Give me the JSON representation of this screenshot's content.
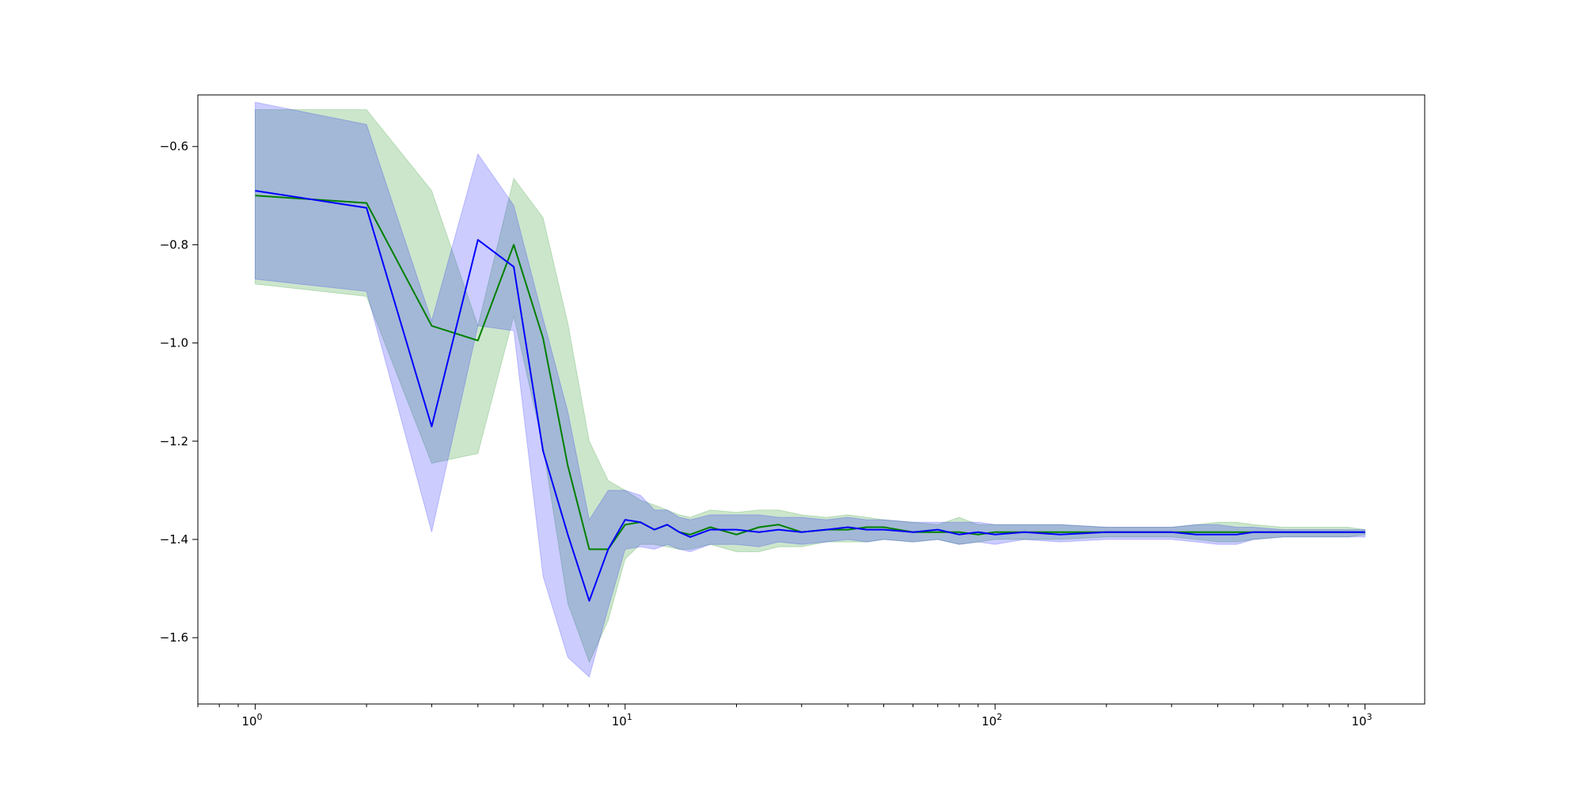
{
  "chart_data": {
    "type": "line",
    "title": "",
    "xlabel": "",
    "ylabel": "",
    "x_scale": "log",
    "xlim": [
      0.7,
      1450
    ],
    "ylim": [
      -1.735,
      -0.495
    ],
    "grid": false,
    "legend": "none",
    "x_ticks": [
      {
        "value": 1,
        "base": "10",
        "exp": "0"
      },
      {
        "value": 10,
        "base": "10",
        "exp": "1"
      },
      {
        "value": 100,
        "base": "10",
        "exp": "2"
      },
      {
        "value": 1000,
        "base": "10",
        "exp": "3"
      }
    ],
    "y_ticks": [
      {
        "value": -0.6,
        "label": "−0.6"
      },
      {
        "value": -0.8,
        "label": "−0.8"
      },
      {
        "value": -1.0,
        "label": "−1.0"
      },
      {
        "value": -1.2,
        "label": "−1.2"
      },
      {
        "value": -1.4,
        "label": "−1.4"
      },
      {
        "value": -1.6,
        "label": "−1.6"
      }
    ],
    "series": [
      {
        "color": "#008000",
        "band_color": "#008000",
        "band_opacity": 0.2,
        "x": [
          1,
          2,
          3,
          4,
          5,
          6,
          7,
          8,
          9,
          10,
          11,
          12,
          13,
          14,
          15,
          17,
          20,
          23,
          26,
          30,
          35,
          40,
          45,
          50,
          60,
          70,
          80,
          90,
          100,
          120,
          150,
          200,
          250,
          300,
          350,
          400,
          450,
          500,
          600,
          700,
          800,
          900,
          1000
        ],
        "y": [
          -0.7,
          -0.715,
          -0.965,
          -0.995,
          -0.8,
          -0.99,
          -1.25,
          -1.42,
          -1.42,
          -1.37,
          -1.365,
          -1.38,
          -1.37,
          -1.385,
          -1.39,
          -1.375,
          -1.39,
          -1.375,
          -1.37,
          -1.385,
          -1.38,
          -1.38,
          -1.375,
          -1.375,
          -1.385,
          -1.385,
          -1.385,
          -1.39,
          -1.385,
          -1.385,
          -1.385,
          -1.385,
          -1.385,
          -1.385,
          -1.385,
          -1.385,
          -1.385,
          -1.385,
          -1.385,
          -1.385,
          -1.385,
          -1.385,
          -1.385
        ],
        "upper": [
          -0.525,
          -0.525,
          -0.69,
          -0.965,
          -0.665,
          -0.745,
          -0.96,
          -1.2,
          -1.28,
          -1.3,
          -1.32,
          -1.33,
          -1.34,
          -1.35,
          -1.355,
          -1.34,
          -1.345,
          -1.34,
          -1.34,
          -1.35,
          -1.355,
          -1.35,
          -1.355,
          -1.36,
          -1.365,
          -1.37,
          -1.355,
          -1.37,
          -1.37,
          -1.37,
          -1.37,
          -1.375,
          -1.375,
          -1.375,
          -1.37,
          -1.365,
          -1.365,
          -1.37,
          -1.375,
          -1.375,
          -1.375,
          -1.375,
          -1.38
        ],
        "lower": [
          -0.88,
          -0.905,
          -1.245,
          -1.225,
          -0.945,
          -1.21,
          -1.53,
          -1.65,
          -1.565,
          -1.44,
          -1.41,
          -1.41,
          -1.415,
          -1.42,
          -1.42,
          -1.41,
          -1.425,
          -1.425,
          -1.415,
          -1.415,
          -1.405,
          -1.405,
          -1.405,
          -1.4,
          -1.405,
          -1.4,
          -1.41,
          -1.405,
          -1.4,
          -1.4,
          -1.4,
          -1.395,
          -1.395,
          -1.395,
          -1.4,
          -1.405,
          -1.405,
          -1.4,
          -1.395,
          -1.395,
          -1.395,
          -1.395,
          -1.39
        ]
      },
      {
        "color": "#0000ff",
        "band_color": "#0000ff",
        "band_opacity": 0.2,
        "x": [
          1,
          2,
          3,
          4,
          5,
          6,
          7,
          8,
          9,
          10,
          11,
          12,
          13,
          14,
          15,
          17,
          20,
          23,
          26,
          30,
          35,
          40,
          45,
          50,
          60,
          70,
          80,
          90,
          100,
          120,
          150,
          200,
          250,
          300,
          350,
          400,
          450,
          500,
          600,
          700,
          800,
          900,
          1000
        ],
        "y": [
          -0.69,
          -0.725,
          -1.17,
          -0.79,
          -0.845,
          -1.22,
          -1.39,
          -1.525,
          -1.42,
          -1.36,
          -1.365,
          -1.38,
          -1.37,
          -1.385,
          -1.395,
          -1.38,
          -1.38,
          -1.385,
          -1.38,
          -1.385,
          -1.38,
          -1.375,
          -1.38,
          -1.38,
          -1.385,
          -1.38,
          -1.39,
          -1.385,
          -1.39,
          -1.385,
          -1.39,
          -1.385,
          -1.385,
          -1.385,
          -1.39,
          -1.39,
          -1.39,
          -1.385,
          -1.385,
          -1.385,
          -1.385,
          -1.385,
          -1.385
        ],
        "upper": [
          -0.51,
          -0.555,
          -0.955,
          -0.615,
          -0.72,
          -0.95,
          -1.14,
          -1.36,
          -1.3,
          -1.3,
          -1.31,
          -1.34,
          -1.34,
          -1.355,
          -1.36,
          -1.35,
          -1.35,
          -1.35,
          -1.355,
          -1.355,
          -1.36,
          -1.355,
          -1.36,
          -1.36,
          -1.365,
          -1.365,
          -1.365,
          -1.365,
          -1.37,
          -1.37,
          -1.37,
          -1.375,
          -1.375,
          -1.375,
          -1.37,
          -1.37,
          -1.375,
          -1.375,
          -1.38,
          -1.38,
          -1.38,
          -1.38,
          -1.38
        ],
        "lower": [
          -0.87,
          -0.895,
          -1.385,
          -0.965,
          -0.975,
          -1.475,
          -1.64,
          -1.68,
          -1.54,
          -1.42,
          -1.415,
          -1.42,
          -1.41,
          -1.42,
          -1.425,
          -1.41,
          -1.41,
          -1.415,
          -1.405,
          -1.41,
          -1.405,
          -1.4,
          -1.405,
          -1.4,
          -1.405,
          -1.4,
          -1.41,
          -1.405,
          -1.41,
          -1.4,
          -1.405,
          -1.4,
          -1.4,
          -1.4,
          -1.405,
          -1.41,
          -1.41,
          -1.4,
          -1.395,
          -1.395,
          -1.395,
          -1.395,
          -1.395
        ]
      }
    ]
  }
}
